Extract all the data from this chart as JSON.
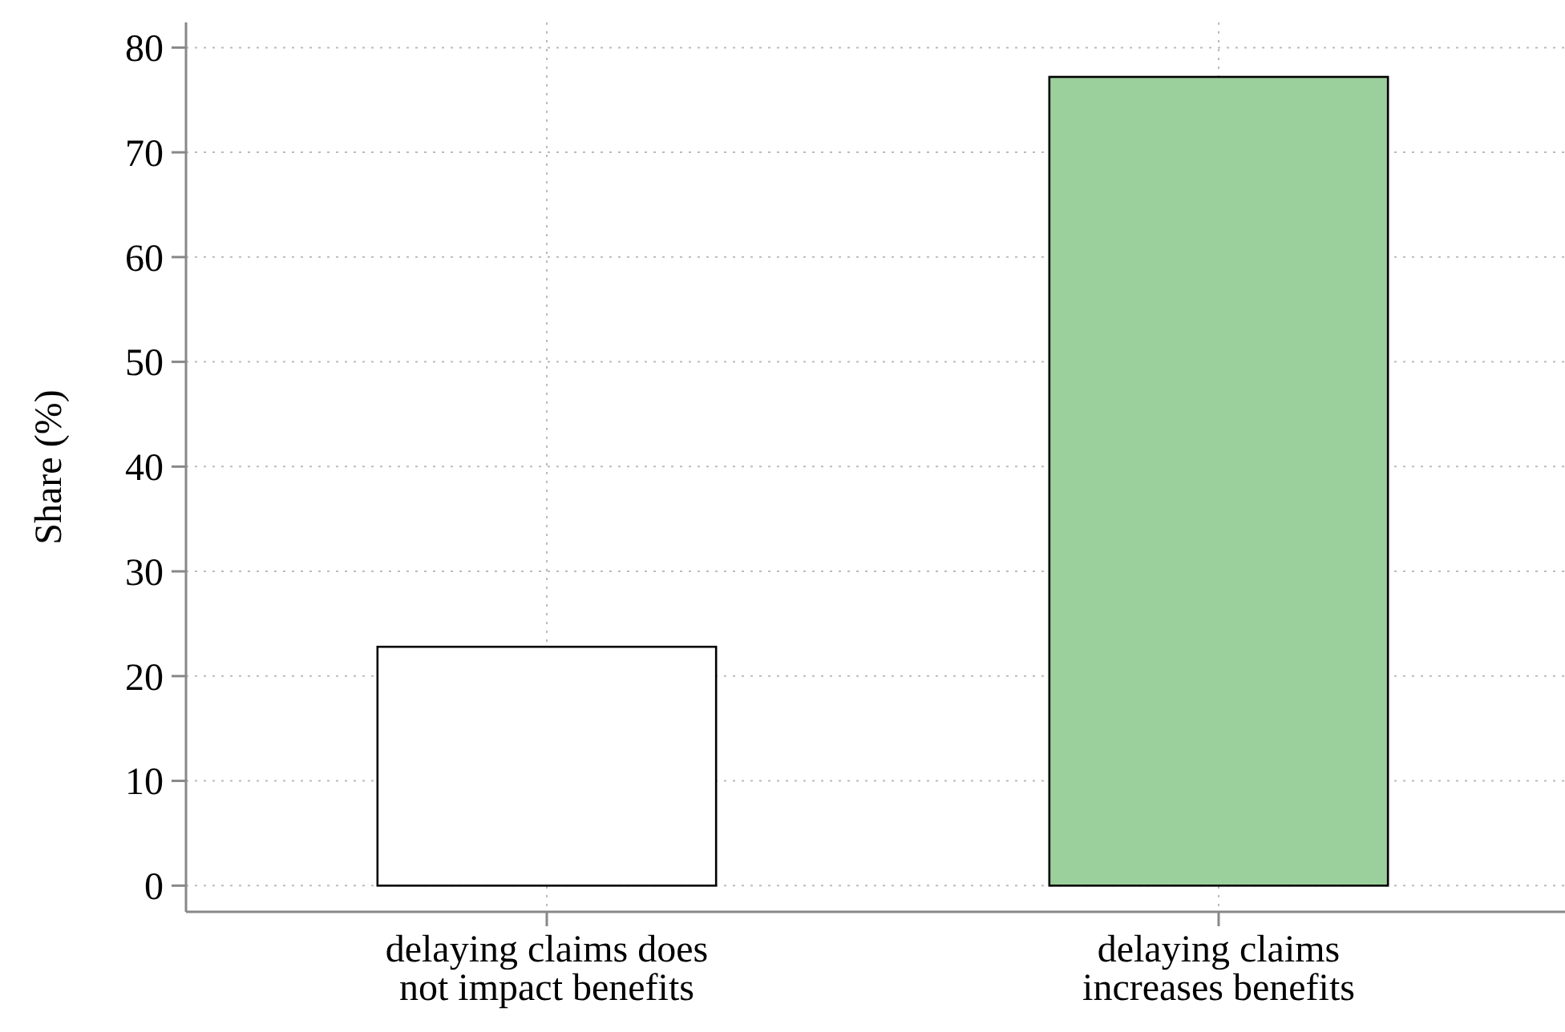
{
  "chart_data": {
    "type": "bar",
    "ylabel": "Share (%)",
    "categories": [
      "delaying claims does\nnot impact benefits",
      "delaying claims\nincreases benefits"
    ],
    "values": [
      22.8,
      77.2
    ],
    "colors": [
      "#ffffff",
      "#9bcf9b"
    ],
    "ylim": [
      -2.5,
      82.4
    ],
    "yticks": [
      0,
      10,
      20,
      30,
      40,
      50,
      60,
      70,
      80
    ],
    "grid": true
  }
}
